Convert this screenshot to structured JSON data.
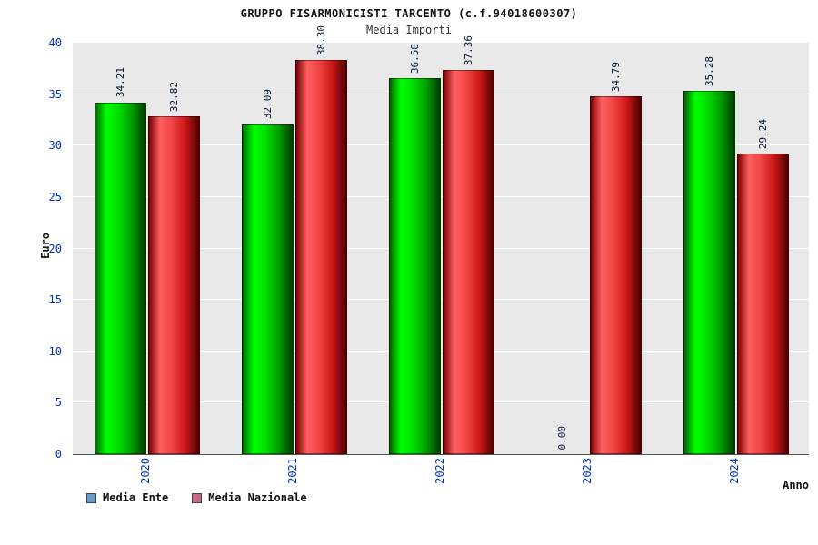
{
  "header": {
    "title": "GRUPPO FISARMONICISTI TARCENTO (c.f.94018600307)",
    "subtitle": "Media Importi"
  },
  "axis": {
    "y_label": "Euro",
    "x_label": "Anno",
    "y_ticks": [
      0,
      5,
      10,
      15,
      20,
      25,
      30,
      35,
      40
    ],
    "y_max": 40
  },
  "legend": [
    {
      "label": "Media Ente",
      "marker_color": "#6699cc"
    },
    {
      "label": "Media Nazionale",
      "marker_color": "#cc6688"
    }
  ],
  "colors": {
    "bar_media_ente": "#00dd00",
    "bar_media_nazionale": "#ee3333",
    "tick_labels": "#0033cc",
    "plot_background": "#e9e9e9",
    "gridline": "#ffffff"
  },
  "chart_data": {
    "type": "bar",
    "title": "Media Importi",
    "xlabel": "Anno",
    "ylabel": "Euro",
    "ylim": [
      0,
      40
    ],
    "grid": true,
    "legend_position": "bottom-left",
    "categories": [
      "2020",
      "2021",
      "2022",
      "2023",
      "2024"
    ],
    "series": [
      {
        "name": "Media Ente",
        "values": [
          34.21,
          32.09,
          36.58,
          0.0,
          35.28
        ]
      },
      {
        "name": "Media Nazionale",
        "values": [
          32.82,
          38.3,
          37.36,
          34.79,
          29.24
        ]
      }
    ]
  }
}
